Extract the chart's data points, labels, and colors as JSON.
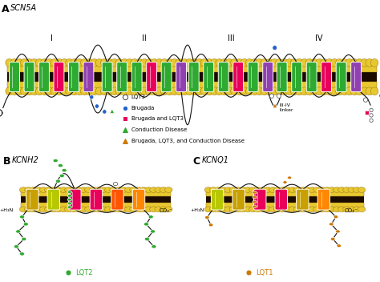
{
  "title_a": "SCN5A",
  "title_b": "KCNH2",
  "title_c": "KCNQ1",
  "label_a": "A",
  "label_b": "B",
  "label_c": "C",
  "bg_color": "#ffffff",
  "mem_gold": "#e8c830",
  "mem_dark": "#1a0a00",
  "mem_line": "#8B6914",
  "helix_green": "#2eaa30",
  "helix_pink": "#e8005a",
  "helix_purple": "#9040b0",
  "helix_yellow_green": "#b8c800",
  "helix_dark_yellow": "#c8a000",
  "helix_orange": "#ff5500",
  "helix_orange2": "#ff8800",
  "dot_blue": "#2060d0",
  "dot_white_edge": "#444444",
  "dot_pink": "#e8005a",
  "dot_green": "#30aa30",
  "dot_orange": "#cc7700",
  "loop_color": "#111111",
  "legend_lqt3": "LQT3",
  "legend_brugada": "Brugada",
  "legend_brugada_lqt3": "Brugada and LQT3",
  "legend_conduction": "Conduction Disease",
  "legend_brugada_lqt3_cd": "Brugada, LQT3, and Conduction Disease",
  "legend_lqt2": "LQT2",
  "legend_lqt1": "LQT1",
  "domain_labels": [
    "I",
    "II",
    "III",
    "IV"
  ],
  "iii_iv_linker": "III-IV\nlinker",
  "h3n_label": "+H₃N",
  "co2_label": "CO₂⁻"
}
